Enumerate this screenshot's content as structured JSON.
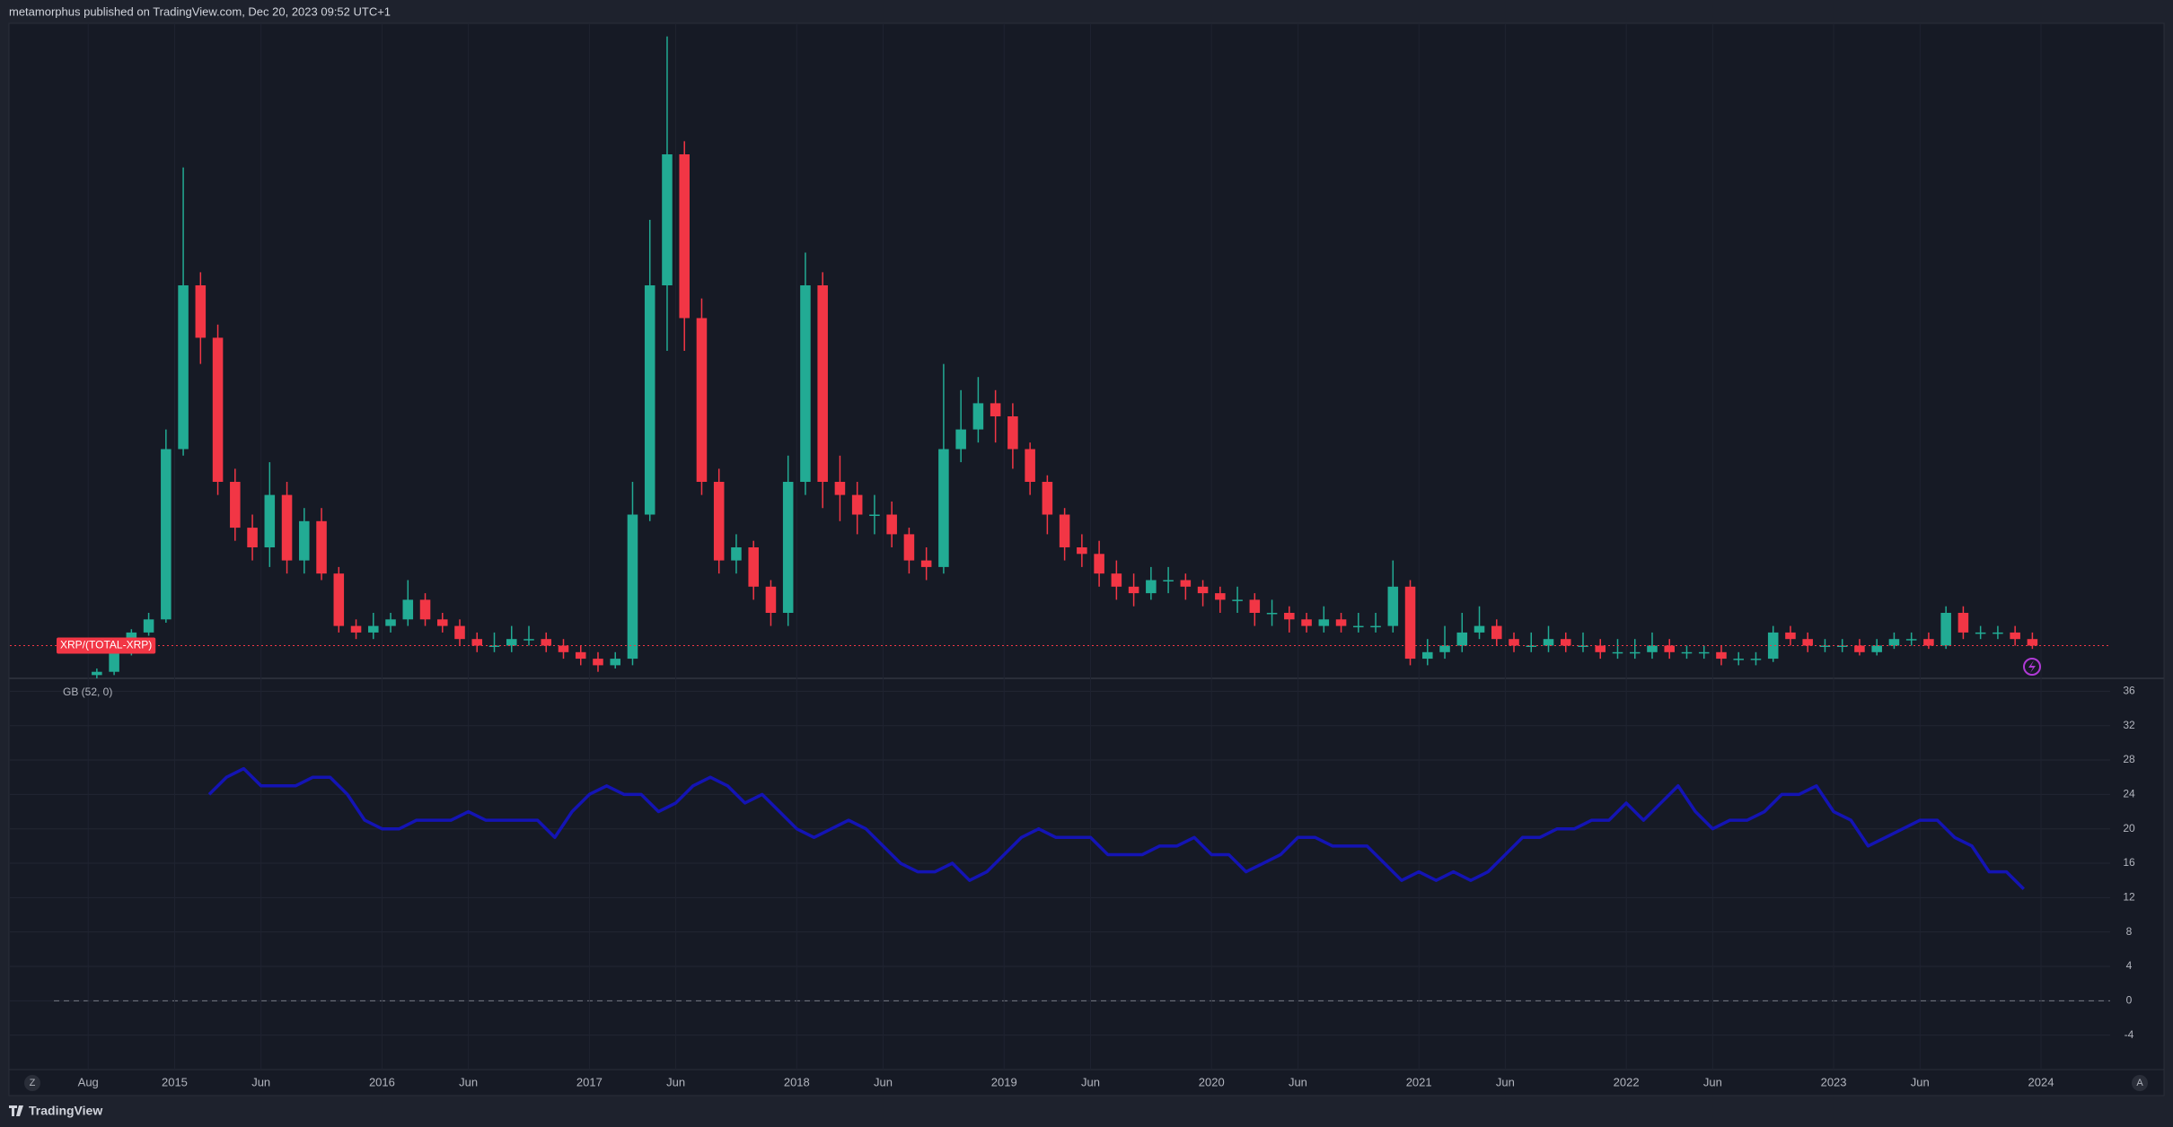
{
  "header": {
    "text": "metamorphus published on TradingView.com, Dec 20, 2023 09:52 UTC+1"
  },
  "footer": {
    "brand": "TradingView",
    "left_button": "Z",
    "right_button": "A"
  },
  "chart_data": [
    {
      "type": "candlestick",
      "name": "XRP/(TOTAL-XRP)",
      "up_color": "#22ab94",
      "down_color": "#f23645",
      "xlim": [
        "2014-03",
        "2024-05"
      ],
      "ylim": [
        0,
        100
      ],
      "x": [
        "2014-08",
        "2014-09",
        "2014-10",
        "2014-11",
        "2014-12",
        "2015-01",
        "2015-02",
        "2015-03",
        "2015-04",
        "2015-05",
        "2015-06",
        "2015-07",
        "2015-08",
        "2015-09",
        "2015-10",
        "2015-11",
        "2015-12",
        "2016-01",
        "2016-02",
        "2016-03",
        "2016-04",
        "2016-05",
        "2016-06",
        "2016-07",
        "2016-08",
        "2016-09",
        "2016-10",
        "2016-11",
        "2016-12",
        "2017-01",
        "2017-02",
        "2017-03",
        "2017-04",
        "2017-05",
        "2017-06",
        "2017-07",
        "2017-08",
        "2017-09",
        "2017-10",
        "2017-11",
        "2017-12",
        "2018-01",
        "2018-02",
        "2018-03",
        "2018-04",
        "2018-05",
        "2018-06",
        "2018-07",
        "2018-08",
        "2018-09",
        "2018-10",
        "2018-11",
        "2018-12",
        "2019-01",
        "2019-02",
        "2019-03",
        "2019-04",
        "2019-05",
        "2019-06",
        "2019-07",
        "2019-08",
        "2019-09",
        "2019-10",
        "2019-11",
        "2019-12",
        "2020-01",
        "2020-02",
        "2020-03",
        "2020-04",
        "2020-05",
        "2020-06",
        "2020-07",
        "2020-08",
        "2020-09",
        "2020-10",
        "2020-11",
        "2020-12",
        "2021-01",
        "2021-02",
        "2021-03",
        "2021-04",
        "2021-05",
        "2021-06",
        "2021-07",
        "2021-08",
        "2021-09",
        "2021-10",
        "2021-11",
        "2021-12",
        "2022-01",
        "2022-02",
        "2022-03",
        "2022-04",
        "2022-05",
        "2022-06",
        "2022-07",
        "2022-08",
        "2022-09",
        "2022-10",
        "2022-11",
        "2022-12",
        "2023-01",
        "2023-02",
        "2023-03",
        "2023-04",
        "2023-05",
        "2023-06",
        "2023-07",
        "2023-08",
        "2023-09",
        "2023-10",
        "2023-11",
        "2023-12"
      ],
      "open": [
        0.5,
        1,
        4,
        7,
        9,
        35,
        60,
        52,
        30,
        23,
        20,
        28,
        18,
        24,
        16,
        8,
        7,
        8,
        9,
        12,
        9,
        8,
        6,
        5,
        5,
        6,
        6,
        5,
        4,
        3,
        2,
        3,
        25,
        60,
        80,
        55,
        30,
        18,
        20,
        14,
        10,
        30,
        60,
        30,
        28,
        25,
        25,
        22,
        18,
        17,
        35,
        38,
        42,
        40,
        35,
        30,
        25,
        20,
        19,
        16,
        14,
        13,
        15,
        15,
        14,
        13,
        12,
        12,
        10,
        10,
        9,
        8,
        9,
        8,
        8,
        8,
        14,
        3,
        4,
        5,
        7,
        8,
        6,
        5,
        5,
        6,
        5,
        5,
        4,
        4,
        4,
        5,
        4,
        4,
        4,
        3,
        3,
        3,
        7,
        6,
        5,
        5,
        5,
        4,
        5,
        6,
        6,
        5,
        10,
        7,
        7,
        7,
        6
      ],
      "high": [
        1.5,
        4.5,
        7.5,
        10,
        38,
        78,
        62,
        54,
        32,
        25,
        33,
        30,
        26,
        26,
        17,
        9,
        10,
        10,
        15,
        13,
        10,
        9,
        7,
        7,
        8,
        8,
        7,
        6,
        5,
        4,
        4,
        30,
        70,
        98,
        82,
        58,
        32,
        22,
        21,
        15,
        34,
        65,
        62,
        34,
        30,
        28,
        27,
        23,
        20,
        48,
        44,
        46,
        44,
        42,
        36,
        31,
        26,
        22,
        21,
        18,
        16,
        17,
        17,
        16,
        15,
        14,
        14,
        13,
        12,
        11,
        10,
        11,
        10,
        10,
        10,
        18,
        15,
        6,
        8,
        10,
        11,
        9,
        7,
        7,
        8,
        7,
        7,
        6,
        6,
        6,
        7,
        6,
        5,
        5,
        5,
        4,
        4,
        8,
        8,
        7,
        6,
        6,
        6,
        6,
        7,
        7,
        7,
        11,
        11,
        8,
        8,
        8,
        7
      ],
      "low": [
        0,
        0.5,
        3.5,
        6.5,
        8.5,
        34,
        48,
        28,
        21,
        18,
        17,
        16,
        16,
        15,
        7,
        6,
        6,
        7,
        8,
        8,
        7,
        5,
        4,
        4,
        4,
        5,
        4,
        3,
        2,
        1,
        1.5,
        2,
        24,
        50,
        50,
        28,
        16,
        16,
        12,
        8,
        8,
        28,
        26,
        24,
        22,
        22,
        20,
        16,
        15,
        16,
        33,
        36,
        36,
        32,
        28,
        22,
        18,
        17,
        14,
        12,
        11,
        12,
        13,
        12,
        11,
        10,
        10,
        8,
        8,
        7,
        7,
        7,
        7,
        7,
        7,
        7,
        2,
        2,
        3,
        4,
        6,
        5,
        4,
        4,
        4,
        4,
        4,
        3,
        3,
        3,
        3,
        3,
        3,
        3,
        2,
        2,
        2,
        2.5,
        5,
        4,
        4,
        4,
        3.5,
        3.5,
        4.5,
        5,
        4.5,
        4.5,
        6,
        6,
        6,
        5,
        4.5
      ],
      "close": [
        1,
        4,
        7,
        9,
        35,
        60,
        52,
        30,
        23,
        20,
        28,
        18,
        24,
        16,
        8,
        7,
        8,
        9,
        12,
        9,
        8,
        6,
        5,
        5,
        6,
        6,
        5,
        4,
        3,
        2,
        3,
        25,
        60,
        80,
        55,
        30,
        18,
        20,
        14,
        10,
        30,
        60,
        30,
        28,
        25,
        25,
        22,
        18,
        17,
        35,
        38,
        42,
        40,
        35,
        30,
        25,
        20,
        19,
        16,
        14,
        13,
        15,
        15,
        14,
        13,
        12,
        12,
        10,
        10,
        9,
        8,
        9,
        8,
        8,
        8,
        14,
        3,
        4,
        5,
        7,
        8,
        6,
        5,
        5,
        6,
        5,
        5,
        4,
        4,
        4,
        5,
        4,
        4,
        4,
        3,
        3,
        3,
        7,
        6,
        5,
        5,
        5,
        4,
        5,
        6,
        6,
        5,
        10,
        7,
        7,
        7,
        6,
        5
      ]
    },
    {
      "type": "line",
      "title": "GB (52, 0)",
      "color": "#1414b4",
      "xlim": [
        "2014-03",
        "2024-05"
      ],
      "ylim": [
        -8,
        37.5
      ],
      "yticks": [
        -4,
        0,
        4,
        8,
        12,
        16,
        20,
        24,
        28,
        32,
        36
      ],
      "grid": true,
      "xticks": [
        {
          "value": "2014-08",
          "label": "Aug"
        },
        {
          "value": "2015-01",
          "label": "2015"
        },
        {
          "value": "2015-06",
          "label": "Jun"
        },
        {
          "value": "2016-01",
          "label": "2016"
        },
        {
          "value": "2016-06",
          "label": "Jun"
        },
        {
          "value": "2017-01",
          "label": "2017"
        },
        {
          "value": "2017-06",
          "label": "Jun"
        },
        {
          "value": "2018-01",
          "label": "2018"
        },
        {
          "value": "2018-06",
          "label": "Jun"
        },
        {
          "value": "2019-01",
          "label": "2019"
        },
        {
          "value": "2019-06",
          "label": "Jun"
        },
        {
          "value": "2020-01",
          "label": "2020"
        },
        {
          "value": "2020-06",
          "label": "Jun"
        },
        {
          "value": "2021-01",
          "label": "2021"
        },
        {
          "value": "2021-06",
          "label": "Jun"
        },
        {
          "value": "2022-01",
          "label": "2022"
        },
        {
          "value": "2022-06",
          "label": "Jun"
        },
        {
          "value": "2023-01",
          "label": "2023"
        },
        {
          "value": "2023-06",
          "label": "Jun"
        },
        {
          "value": "2024-01",
          "label": "2024"
        }
      ],
      "x": [
        "2015-03",
        "2015-04",
        "2015-05",
        "2015-06",
        "2015-07",
        "2015-08",
        "2015-09",
        "2015-10",
        "2015-11",
        "2015-12",
        "2016-01",
        "2016-02",
        "2016-03",
        "2016-04",
        "2016-05",
        "2016-06",
        "2016-07",
        "2016-08",
        "2016-09",
        "2016-10",
        "2016-11",
        "2016-12",
        "2017-01",
        "2017-02",
        "2017-03",
        "2017-04",
        "2017-05",
        "2017-06",
        "2017-07",
        "2017-08",
        "2017-09",
        "2017-10",
        "2017-11",
        "2017-12",
        "2018-01",
        "2018-02",
        "2018-03",
        "2018-04",
        "2018-05",
        "2018-06",
        "2018-07",
        "2018-08",
        "2018-09",
        "2018-10",
        "2018-11",
        "2018-12",
        "2019-01",
        "2019-02",
        "2019-03",
        "2019-04",
        "2019-05",
        "2019-06",
        "2019-07",
        "2019-08",
        "2019-09",
        "2019-10",
        "2019-11",
        "2019-12",
        "2020-01",
        "2020-02",
        "2020-03",
        "2020-04",
        "2020-05",
        "2020-06",
        "2020-07",
        "2020-08",
        "2020-09",
        "2020-10",
        "2020-11",
        "2020-12",
        "2021-01",
        "2021-02",
        "2021-03",
        "2021-04",
        "2021-05",
        "2021-06",
        "2021-07",
        "2021-08",
        "2021-09",
        "2021-10",
        "2021-11",
        "2021-12",
        "2022-01",
        "2022-02",
        "2022-03",
        "2022-04",
        "2022-05",
        "2022-06",
        "2022-07",
        "2022-08",
        "2022-09",
        "2022-10",
        "2022-11",
        "2022-12",
        "2023-01",
        "2023-02",
        "2023-03",
        "2023-04",
        "2023-05",
        "2023-06",
        "2023-07",
        "2023-08",
        "2023-09",
        "2023-10",
        "2023-11",
        "2023-12"
      ],
      "values": [
        24,
        26,
        27,
        25,
        25,
        25,
        26,
        26,
        24,
        21,
        20,
        20,
        21,
        21,
        21,
        22,
        21,
        21,
        21,
        21,
        19,
        22,
        24,
        25,
        24,
        24,
        22,
        23,
        25,
        26,
        25,
        23,
        24,
        22,
        20,
        19,
        20,
        21,
        20,
        18,
        16,
        15,
        15,
        16,
        14,
        15,
        17,
        19,
        20,
        19,
        19,
        19,
        17,
        17,
        17,
        18,
        18,
        19,
        17,
        17,
        15,
        16,
        17,
        19,
        19,
        18,
        18,
        18,
        16,
        14,
        15,
        14,
        15,
        14,
        15,
        17,
        19,
        19,
        20,
        20,
        21,
        21,
        23,
        21,
        23,
        25,
        22,
        20,
        21,
        21,
        22,
        24,
        24,
        25,
        22,
        21,
        18,
        19,
        20,
        21,
        21,
        19,
        18,
        15,
        15,
        13
      ]
    }
  ]
}
